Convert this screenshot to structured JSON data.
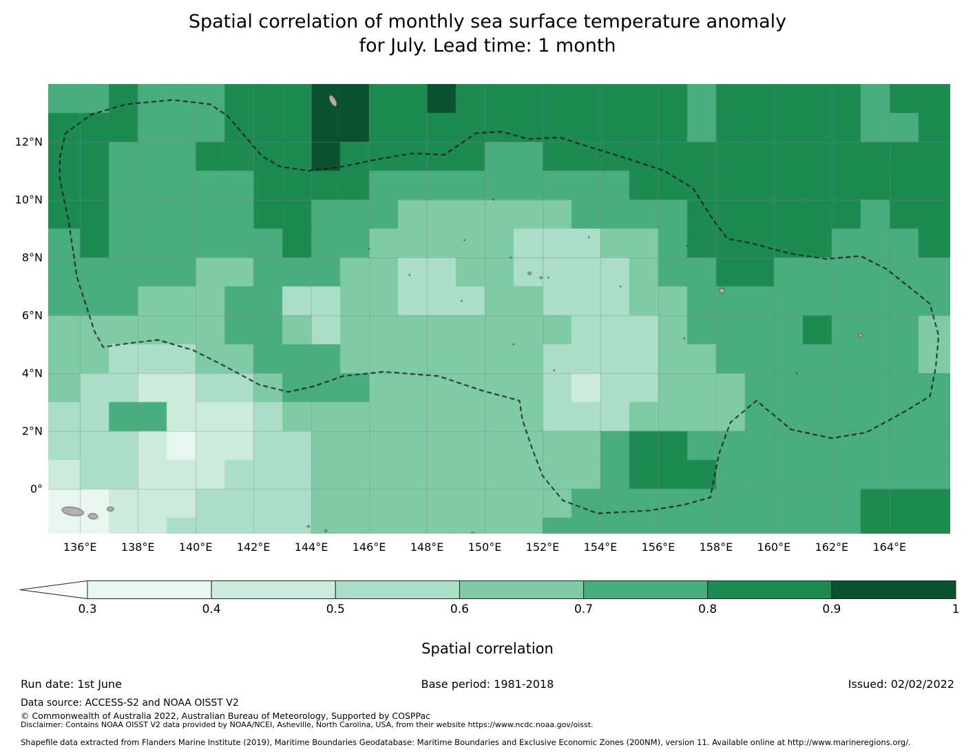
{
  "title": {
    "line1": "Spatial correlation of monthly sea surface temperature anomaly",
    "line2": "for July. Lead time: 1 month"
  },
  "footer": {
    "run_date": "Run date: 1st June",
    "base_period": "Base period: 1981-2018",
    "issued": "Issued: 02/02/2022",
    "data_source": "Data source: ACCESS-S2 and NOAA OISST V2",
    "copyright": "© Commonwealth of Australia 2022, Australian Bureau of Meteorology, Supported by COSPPac",
    "disclaimer": "Disclaimer: Contains NOAA OISST V2 data provided by NOAA/NCEI, Asheville, North Carolina, USA, from their website https://www.ncdc.noaa.gov/oisst.",
    "shapefile": "Shapefile data extracted from Flanders Marine Institute (2019), Maritime Boundaries Geodatabase: Maritime Boundaries and Exclusive Economic Zones (200NM), version 11. Available online at http://www.marineregions.org/."
  },
  "chart_data": {
    "type": "heatmap",
    "title": "Spatial correlation of monthly sea surface temperature anomaly for July. Lead time: 1 month",
    "xlabel": "",
    "ylabel": "",
    "lon_range": [
      134.9,
      166.1
    ],
    "lat_range": [
      -1.55,
      14.0
    ],
    "grid_on": true,
    "grid_line_color": "rgba(130,130,130,0.5)",
    "x_ticks": [
      {
        "label": "136°E",
        "lon": 136
      },
      {
        "label": "138°E",
        "lon": 138
      },
      {
        "label": "140°E",
        "lon": 140
      },
      {
        "label": "142°E",
        "lon": 142
      },
      {
        "label": "144°E",
        "lon": 144
      },
      {
        "label": "146°E",
        "lon": 146
      },
      {
        "label": "148°E",
        "lon": 148
      },
      {
        "label": "150°E",
        "lon": 150
      },
      {
        "label": "152°E",
        "lon": 152
      },
      {
        "label": "154°E",
        "lon": 154
      },
      {
        "label": "156°E",
        "lon": 156
      },
      {
        "label": "158°E",
        "lon": 158
      },
      {
        "label": "160°E",
        "lon": 160
      },
      {
        "label": "162°E",
        "lon": 162
      },
      {
        "label": "164°E",
        "lon": 164
      }
    ],
    "y_ticks": [
      {
        "label": "12°N",
        "lat": 12
      },
      {
        "label": "10°N",
        "lat": 10
      },
      {
        "label": "8°N",
        "lat": 8
      },
      {
        "label": "6°N",
        "lat": 6
      },
      {
        "label": "4°N",
        "lat": 4
      },
      {
        "label": "2°N",
        "lat": 2
      },
      {
        "label": "0°",
        "lat": 0
      }
    ],
    "colorbar": {
      "label": "Spatial correlation",
      "levels": [
        0.3,
        0.4,
        0.5,
        0.6,
        0.7,
        0.8,
        0.9,
        1.0
      ],
      "tick_labels": [
        "0.3",
        "0.4",
        "0.5",
        "0.6",
        "0.7",
        "0.8",
        "0.9",
        "1"
      ],
      "bin_colors": [
        "#e7f6ef",
        "#cdebdb",
        "#abdec6",
        "#7ecba6",
        "#4aad7d",
        "#1d8a52",
        "#0b5230"
      ],
      "under_color": "#f8fdfb",
      "outline_color": "#222222",
      "position": "bottom"
    },
    "grid": {
      "lon_start": 135,
      "lat_start": 14,
      "cell_deg": 1,
      "values": [
        [
          0.75,
          0.75,
          0.85,
          0.75,
          0.75,
          0.75,
          0.85,
          0.85,
          0.85,
          0.95,
          0.95,
          0.85,
          0.85,
          0.95,
          0.85,
          0.85,
          0.85,
          0.85,
          0.85,
          0.85,
          0.85,
          0.85,
          0.75,
          0.85,
          0.85,
          0.85,
          0.85,
          0.85,
          0.75,
          0.85,
          0.85
        ],
        [
          0.85,
          0.85,
          0.85,
          0.75,
          0.75,
          0.75,
          0.85,
          0.85,
          0.85,
          0.95,
          0.95,
          0.85,
          0.85,
          0.85,
          0.85,
          0.85,
          0.85,
          0.85,
          0.85,
          0.85,
          0.85,
          0.85,
          0.75,
          0.85,
          0.85,
          0.85,
          0.85,
          0.85,
          0.75,
          0.75,
          0.85
        ],
        [
          0.85,
          0.85,
          0.75,
          0.75,
          0.75,
          0.85,
          0.85,
          0.85,
          0.85,
          0.95,
          0.85,
          0.85,
          0.85,
          0.85,
          0.85,
          0.75,
          0.75,
          0.85,
          0.85,
          0.85,
          0.85,
          0.85,
          0.85,
          0.85,
          0.85,
          0.85,
          0.85,
          0.85,
          0.85,
          0.85,
          0.85
        ],
        [
          0.85,
          0.85,
          0.75,
          0.75,
          0.75,
          0.75,
          0.75,
          0.85,
          0.85,
          0.85,
          0.85,
          0.75,
          0.75,
          0.75,
          0.75,
          0.75,
          0.75,
          0.75,
          0.75,
          0.75,
          0.85,
          0.85,
          0.85,
          0.85,
          0.85,
          0.85,
          0.85,
          0.85,
          0.85,
          0.85,
          0.85
        ],
        [
          0.85,
          0.85,
          0.75,
          0.75,
          0.75,
          0.75,
          0.75,
          0.85,
          0.85,
          0.75,
          0.75,
          0.75,
          0.65,
          0.65,
          0.65,
          0.65,
          0.65,
          0.65,
          0.75,
          0.75,
          0.75,
          0.75,
          0.85,
          0.85,
          0.85,
          0.85,
          0.85,
          0.85,
          0.75,
          0.85,
          0.85
        ],
        [
          0.75,
          0.85,
          0.75,
          0.75,
          0.75,
          0.75,
          0.75,
          0.75,
          0.85,
          0.75,
          0.75,
          0.65,
          0.65,
          0.65,
          0.65,
          0.65,
          0.55,
          0.55,
          0.55,
          0.65,
          0.65,
          0.75,
          0.85,
          0.85,
          0.85,
          0.85,
          0.85,
          0.75,
          0.75,
          0.75,
          0.85
        ],
        [
          0.75,
          0.75,
          0.75,
          0.75,
          0.75,
          0.65,
          0.65,
          0.75,
          0.75,
          0.75,
          0.65,
          0.65,
          0.55,
          0.55,
          0.65,
          0.65,
          0.55,
          0.55,
          0.55,
          0.55,
          0.65,
          0.75,
          0.75,
          0.85,
          0.85,
          0.75,
          0.75,
          0.75,
          0.75,
          0.75,
          0.75
        ],
        [
          0.75,
          0.75,
          0.75,
          0.65,
          0.65,
          0.65,
          0.75,
          0.75,
          0.55,
          0.55,
          0.65,
          0.65,
          0.55,
          0.55,
          0.55,
          0.65,
          0.65,
          0.55,
          0.55,
          0.55,
          0.65,
          0.65,
          0.75,
          0.75,
          0.75,
          0.75,
          0.75,
          0.75,
          0.75,
          0.75,
          0.75
        ],
        [
          0.65,
          0.65,
          0.65,
          0.65,
          0.65,
          0.65,
          0.75,
          0.75,
          0.65,
          0.55,
          0.65,
          0.65,
          0.65,
          0.65,
          0.65,
          0.65,
          0.65,
          0.65,
          0.55,
          0.55,
          0.55,
          0.65,
          0.75,
          0.75,
          0.75,
          0.75,
          0.85,
          0.75,
          0.75,
          0.75,
          0.65
        ],
        [
          0.65,
          0.65,
          0.55,
          0.55,
          0.55,
          0.65,
          0.65,
          0.75,
          0.75,
          0.75,
          0.65,
          0.65,
          0.65,
          0.65,
          0.65,
          0.65,
          0.65,
          0.55,
          0.55,
          0.55,
          0.55,
          0.65,
          0.65,
          0.75,
          0.75,
          0.75,
          0.75,
          0.75,
          0.75,
          0.75,
          0.65
        ],
        [
          0.65,
          0.55,
          0.55,
          0.45,
          0.45,
          0.55,
          0.55,
          0.65,
          0.75,
          0.75,
          0.75,
          0.65,
          0.65,
          0.65,
          0.65,
          0.65,
          0.65,
          0.55,
          0.45,
          0.55,
          0.55,
          0.65,
          0.65,
          0.65,
          0.75,
          0.75,
          0.75,
          0.75,
          0.75,
          0.75,
          0.75
        ],
        [
          0.55,
          0.55,
          0.75,
          0.75,
          0.45,
          0.45,
          0.45,
          0.55,
          0.65,
          0.65,
          0.65,
          0.65,
          0.65,
          0.65,
          0.65,
          0.65,
          0.65,
          0.55,
          0.55,
          0.55,
          0.65,
          0.65,
          0.65,
          0.65,
          0.75,
          0.75,
          0.75,
          0.75,
          0.75,
          0.75,
          0.75
        ],
        [
          0.55,
          0.55,
          0.55,
          0.45,
          0.35,
          0.45,
          0.45,
          0.55,
          0.55,
          0.65,
          0.65,
          0.65,
          0.65,
          0.65,
          0.65,
          0.65,
          0.65,
          0.65,
          0.65,
          0.75,
          0.85,
          0.85,
          0.75,
          0.75,
          0.75,
          0.75,
          0.75,
          0.75,
          0.75,
          0.75,
          0.75
        ],
        [
          0.45,
          0.55,
          0.55,
          0.45,
          0.45,
          0.45,
          0.55,
          0.55,
          0.55,
          0.65,
          0.65,
          0.65,
          0.65,
          0.65,
          0.65,
          0.65,
          0.65,
          0.65,
          0.65,
          0.75,
          0.85,
          0.85,
          0.85,
          0.75,
          0.75,
          0.75,
          0.75,
          0.75,
          0.75,
          0.75,
          0.75
        ],
        [
          0.35,
          0.35,
          0.45,
          0.45,
          0.45,
          0.55,
          0.55,
          0.55,
          0.55,
          0.65,
          0.65,
          0.65,
          0.65,
          0.65,
          0.65,
          0.65,
          0.65,
          0.65,
          0.75,
          0.75,
          0.75,
          0.75,
          0.75,
          0.75,
          0.75,
          0.75,
          0.75,
          0.75,
          0.85,
          0.85,
          0.85
        ],
        [
          0.35,
          0.35,
          0.45,
          0.45,
          0.55,
          0.55,
          0.55,
          0.55,
          0.55,
          0.65,
          0.65,
          0.65,
          0.65,
          0.65,
          0.65,
          0.65,
          0.65,
          0.75,
          0.75,
          0.75,
          0.75,
          0.75,
          0.75,
          0.75,
          0.75,
          0.75,
          0.75,
          0.75,
          0.85,
          0.85,
          0.85
        ]
      ]
    },
    "boundary_style": {
      "color": "#141414",
      "dash": [
        7,
        4.5
      ],
      "width": 1.7
    },
    "boundary": [
      [
        135.3,
        11.45
      ],
      [
        135.5,
        12.3
      ],
      [
        136.4,
        12.95
      ],
      [
        137.6,
        13.3
      ],
      [
        139.2,
        13.45
      ],
      [
        140.5,
        13.3
      ],
      [
        141.1,
        12.9
      ],
      [
        142.3,
        11.5
      ],
      [
        142.9,
        11.15
      ],
      [
        143.9,
        11.0
      ],
      [
        145.1,
        11.15
      ],
      [
        146.3,
        11.4
      ],
      [
        147.5,
        11.6
      ],
      [
        148.6,
        11.55
      ],
      [
        149.7,
        12.3
      ],
      [
        150.6,
        12.35
      ],
      [
        151.5,
        12.1
      ],
      [
        152.6,
        12.15
      ],
      [
        153.7,
        11.8
      ],
      [
        155.0,
        11.4
      ],
      [
        156.2,
        11.0
      ],
      [
        157.2,
        10.4
      ],
      [
        157.9,
        9.3
      ],
      [
        158.4,
        8.65
      ],
      [
        159.2,
        8.5
      ],
      [
        160.5,
        8.15
      ],
      [
        161.8,
        7.95
      ],
      [
        163.0,
        8.05
      ],
      [
        163.9,
        7.6
      ],
      [
        165.4,
        6.4
      ],
      [
        165.7,
        5.3
      ],
      [
        165.6,
        4.2
      ],
      [
        165.4,
        3.2
      ],
      [
        164.4,
        2.6
      ],
      [
        163.2,
        1.95
      ],
      [
        162.0,
        1.75
      ],
      [
        160.6,
        2.05
      ],
      [
        159.4,
        3.05
      ],
      [
        158.5,
        2.3
      ],
      [
        158.1,
        1.2
      ],
      [
        157.8,
        -0.3
      ],
      [
        156.9,
        -0.55
      ],
      [
        155.7,
        -0.75
      ],
      [
        153.9,
        -0.85
      ],
      [
        152.7,
        -0.4
      ],
      [
        152.0,
        0.45
      ],
      [
        151.6,
        1.5
      ],
      [
        151.3,
        2.4
      ],
      [
        151.2,
        3.05
      ],
      [
        149.9,
        3.4
      ],
      [
        148.4,
        3.9
      ],
      [
        146.5,
        4.05
      ],
      [
        145.1,
        3.9
      ],
      [
        144.1,
        3.55
      ],
      [
        143.2,
        3.35
      ],
      [
        142.2,
        3.6
      ],
      [
        141.0,
        4.25
      ],
      [
        139.9,
        4.8
      ],
      [
        138.7,
        5.15
      ],
      [
        137.8,
        5.05
      ],
      [
        136.8,
        4.9
      ],
      [
        136.5,
        5.45
      ],
      [
        135.9,
        7.3
      ],
      [
        135.6,
        9.3
      ],
      [
        135.3,
        10.7
      ]
    ],
    "land": [
      {
        "name": "guam",
        "lon": 144.75,
        "lat": 13.42,
        "w": 4,
        "h": 9,
        "rot": -0.5
      },
      {
        "name": "coast-west",
        "lon": 135.75,
        "lat": -0.78,
        "w": 16,
        "h": 6,
        "rot": 0.15
      },
      {
        "name": "island-west-2",
        "lon": 136.45,
        "lat": -0.95,
        "w": 7,
        "h": 4,
        "rot": 0.1
      },
      {
        "name": "island-west-3",
        "lon": 137.05,
        "lat": -0.7,
        "w": 5,
        "h": 3,
        "rot": 0
      },
      {
        "name": "chuuk-1",
        "lon": 151.55,
        "lat": 7.45,
        "w": 2.5,
        "h": 2,
        "rot": 0
      },
      {
        "name": "chuuk-2",
        "lon": 151.95,
        "lat": 7.3,
        "w": 2,
        "h": 1.5,
        "rot": 0
      },
      {
        "name": "pohnpei",
        "lon": 158.2,
        "lat": 6.85,
        "w": 4,
        "h": 3.5,
        "rot": 0
      },
      {
        "name": "kosrae",
        "lon": 163.0,
        "lat": 5.3,
        "w": 3,
        "h": 2.5,
        "rot": 0
      },
      {
        "name": "islet-south-1",
        "lon": 149.6,
        "lat": -1.55,
        "w": 3,
        "h": 2,
        "rot": 0
      },
      {
        "name": "islet-south-2",
        "lon": 143.9,
        "lat": -1.3,
        "w": 2,
        "h": 1.5,
        "rot": 0
      },
      {
        "name": "islet-south-3",
        "lon": 144.5,
        "lat": -1.45,
        "w": 2,
        "h": 1.5,
        "rot": 0
      }
    ],
    "atoll_specks": [
      [
        149.3,
        8.6
      ],
      [
        150.9,
        8.0
      ],
      [
        152.2,
        7.3
      ],
      [
        153.6,
        8.7
      ],
      [
        147.4,
        7.4
      ],
      [
        146.0,
        8.3
      ],
      [
        154.7,
        7.0
      ],
      [
        156.9,
        5.2
      ],
      [
        149.2,
        6.5
      ],
      [
        150.3,
        10.0
      ],
      [
        154.0,
        11.5
      ],
      [
        157.0,
        8.4
      ],
      [
        160.8,
        4.0
      ],
      [
        152.4,
        4.1
      ],
      [
        151.0,
        5.0
      ]
    ]
  }
}
